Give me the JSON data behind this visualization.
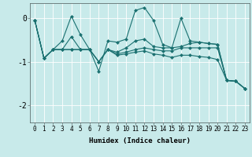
{
  "title": "",
  "xlabel": "Humidex (Indice chaleur)",
  "background_color": "#c8eaea",
  "grid_color": "#ffffff",
  "line_color": "#1a7070",
  "xlim": [
    -0.5,
    23.5
  ],
  "ylim": [
    -2.4,
    0.35
  ],
  "yticks": [
    0,
    -1,
    -2
  ],
  "xticks": [
    0,
    1,
    2,
    3,
    4,
    5,
    6,
    7,
    8,
    9,
    10,
    11,
    12,
    13,
    14,
    15,
    16,
    17,
    18,
    19,
    20,
    21,
    22,
    23
  ],
  "series": [
    [
      -0.05,
      -0.92,
      -0.72,
      -0.52,
      0.05,
      -0.38,
      -0.72,
      -1.22,
      -0.52,
      -0.55,
      -0.48,
      0.18,
      0.25,
      -0.05,
      -0.6,
      -0.68,
      0.0,
      -0.52,
      -0.55,
      -0.58,
      -0.6,
      -1.43,
      -1.45,
      -1.62
    ],
    [
      -0.05,
      -0.92,
      -0.72,
      -0.72,
      -0.42,
      -0.72,
      -0.72,
      -1.0,
      -0.72,
      -0.78,
      -0.68,
      -0.52,
      -0.48,
      -0.65,
      -0.68,
      -0.68,
      -0.65,
      -0.58,
      -0.55,
      -0.58,
      -0.6,
      -1.43,
      -1.45,
      -1.62
    ],
    [
      -0.05,
      -0.92,
      -0.72,
      -0.72,
      -0.72,
      -0.72,
      -0.72,
      -1.0,
      -0.72,
      -0.82,
      -0.78,
      -0.72,
      -0.68,
      -0.72,
      -0.75,
      -0.75,
      -0.68,
      -0.68,
      -0.68,
      -0.68,
      -0.68,
      -1.43,
      -1.45,
      -1.62
    ],
    [
      -0.05,
      -0.92,
      -0.72,
      -0.72,
      -0.72,
      -0.72,
      -0.72,
      -1.0,
      -0.72,
      -0.85,
      -0.82,
      -0.78,
      -0.75,
      -0.82,
      -0.85,
      -0.9,
      -0.85,
      -0.85,
      -0.88,
      -0.9,
      -0.95,
      -1.43,
      -1.45,
      -1.62
    ]
  ],
  "marker": "D",
  "markersize": 2.0,
  "linewidth": 0.8,
  "tick_fontsize": 5.5,
  "label_fontsize": 6.5
}
